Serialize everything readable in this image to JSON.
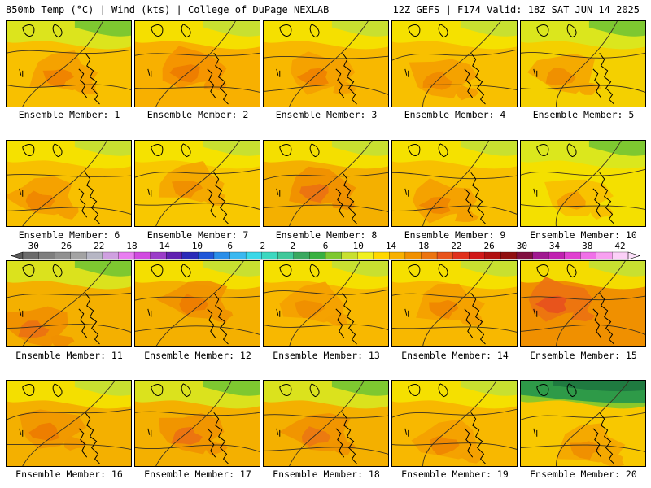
{
  "header": {
    "left": "850mb Temp (°C) | Wind (kts) | College of DuPage NEXLAB",
    "right": "12Z GEFS | F174 Valid: 18Z SAT JUN 14 2025"
  },
  "colorbar": {
    "tick_labels": [
      "−30",
      "−26",
      "−22",
      "−18",
      "−14",
      "−10",
      "−6",
      "−2",
      "2",
      "6",
      "10",
      "14",
      "18",
      "22",
      "26",
      "30",
      "34",
      "38",
      "42"
    ],
    "bins": [
      "#6b6b6b",
      "#7e7e7e",
      "#909090",
      "#a3a3a3",
      "#b6b6c4",
      "#cfa0e0",
      "#e87ef0",
      "#d14be0",
      "#9b3cc8",
      "#6020b0",
      "#2a2ab8",
      "#1f56d8",
      "#2a8ee8",
      "#3ab8f0",
      "#3ad8e8",
      "#3cd8c0",
      "#40c89a",
      "#3aa860",
      "#38b040",
      "#7ec830",
      "#c8e030",
      "#f0f020",
      "#ffd800",
      "#f8b000",
      "#f09000",
      "#ec7410",
      "#e8541c",
      "#e0301c",
      "#d01818",
      "#b01010",
      "#901010",
      "#801040",
      "#a01890",
      "#c020b0",
      "#e040d0",
      "#f070e8",
      "#f8a0f0",
      "#fcd0f8"
    ]
  },
  "members": [
    {
      "label": "Ensemble Member: 1",
      "base": "#f8c000",
      "warm": "#f4a000",
      "hot": "#f08400",
      "north": "green",
      "warm_center": [
        0.45,
        0.6
      ]
    },
    {
      "label": "Ensemble Member: 2",
      "base": "#f8b000",
      "warm": "#f49400",
      "hot": "#ee7e00",
      "north": "yellow",
      "warm_center": [
        0.45,
        0.55
      ]
    },
    {
      "label": "Ensemble Member: 3",
      "base": "#f8b800",
      "warm": "#f4a000",
      "hot": "#f08400",
      "north": "yellow",
      "warm_center": [
        0.45,
        0.6
      ]
    },
    {
      "label": "Ensemble Member: 4",
      "base": "#f8c000",
      "warm": "#f4a000",
      "hot": "#f08c00",
      "north": "yellow",
      "warm_center": [
        0.4,
        0.65
      ]
    },
    {
      "label": "Ensemble Member: 5",
      "base": "#f4d000",
      "warm": "#f4a800",
      "hot": "#f09000",
      "north": "green",
      "warm_center": [
        0.35,
        0.6
      ]
    },
    {
      "label": "Ensemble Member: 6",
      "base": "#f8c000",
      "warm": "#f4a000",
      "hot": "#f08800",
      "north": "yellow",
      "warm_center": [
        0.3,
        0.65
      ]
    },
    {
      "label": "Ensemble Member: 7",
      "base": "#f8c800",
      "warm": "#f4a800",
      "hot": "#f09000",
      "north": "yellow",
      "warm_center": [
        0.45,
        0.5
      ]
    },
    {
      "label": "Ensemble Member: 8",
      "base": "#f4b000",
      "warm": "#f09000",
      "hot": "#ec7410",
      "north": "yellow",
      "warm_center": [
        0.45,
        0.55
      ]
    },
    {
      "label": "Ensemble Member: 9",
      "base": "#f8c000",
      "warm": "#f4a000",
      "hot": "#f08800",
      "north": "yellow",
      "warm_center": [
        0.4,
        0.7
      ]
    },
    {
      "label": "Ensemble Member: 10",
      "base": "#f4e000",
      "warm": "#f8c000",
      "hot": "#f4a000",
      "north": "green",
      "warm_center": [
        0.45,
        0.65
      ]
    },
    {
      "label": "Ensemble Member: 11",
      "base": "#f4b000",
      "warm": "#f09000",
      "hot": "#ec7410",
      "north": "green",
      "warm_center": [
        0.25,
        0.75
      ]
    },
    {
      "label": "Ensemble Member: 12",
      "base": "#f4b000",
      "warm": "#f09400",
      "hot": "#ee7e00",
      "north": "yellow",
      "warm_center": [
        0.5,
        0.45
      ]
    },
    {
      "label": "Ensemble Member: 13",
      "base": "#f8b800",
      "warm": "#f4a000",
      "hot": "#f09000",
      "north": "yellow",
      "warm_center": [
        0.4,
        0.5
      ]
    },
    {
      "label": "Ensemble Member: 14",
      "base": "#f8b800",
      "warm": "#f4a000",
      "hot": "#f08800",
      "north": "yellow",
      "warm_center": [
        0.45,
        0.5
      ]
    },
    {
      "label": "Ensemble Member: 15",
      "base": "#f09000",
      "warm": "#ec7410",
      "hot": "#e8541c",
      "north": "yellow",
      "warm_center": [
        0.3,
        0.45
      ]
    },
    {
      "label": "Ensemble Member: 16",
      "base": "#f4b000",
      "warm": "#f09800",
      "hot": "#ee7e00",
      "north": "yellow",
      "warm_center": [
        0.35,
        0.55
      ]
    },
    {
      "label": "Ensemble Member: 17",
      "base": "#f4b000",
      "warm": "#f09400",
      "hot": "#ec7410",
      "north": "green",
      "warm_center": [
        0.45,
        0.6
      ]
    },
    {
      "label": "Ensemble Member: 18",
      "base": "#f4b000",
      "warm": "#f09400",
      "hot": "#ec7a10",
      "north": "green",
      "warm_center": [
        0.45,
        0.6
      ]
    },
    {
      "label": "Ensemble Member: 19",
      "base": "#f8b800",
      "warm": "#f4a000",
      "hot": "#f08800",
      "north": "yellow",
      "warm_center": [
        0.45,
        0.7
      ]
    },
    {
      "label": "Ensemble Member: 20",
      "base": "#f8c800",
      "warm": "#f4a800",
      "hot": "#f09000",
      "north": "darkgreen",
      "warm_center": [
        0.55,
        0.75
      ]
    }
  ]
}
